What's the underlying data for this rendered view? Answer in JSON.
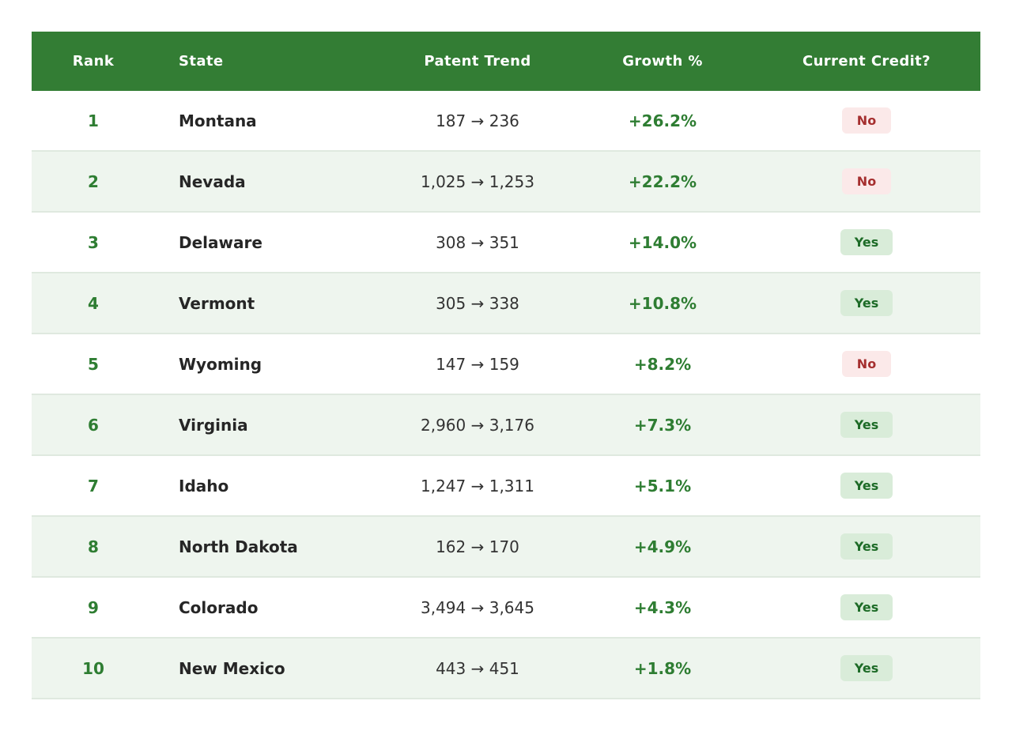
{
  "colors": {
    "header_bg": "#337d34",
    "header_text": "#ffffff",
    "accent_green": "#2e7d32",
    "row_bg": "#ffffff",
    "row_alt_bg": "#eef5ee",
    "row_divider": "#dfe9df",
    "badge_yes_bg": "#d9ecd9",
    "badge_yes_text": "#1d6b27",
    "badge_no_bg": "#fbe9e9",
    "badge_no_text": "#a52f2f",
    "state_text": "#262626",
    "trend_text": "#333333"
  },
  "table": {
    "columns": [
      {
        "key": "rank",
        "label": "Rank"
      },
      {
        "key": "state",
        "label": "State"
      },
      {
        "key": "trend",
        "label": "Patent Trend"
      },
      {
        "key": "growth",
        "label": "Growth %"
      },
      {
        "key": "credit",
        "label": "Current Credit?"
      }
    ],
    "rows": [
      {
        "rank": "1",
        "state": "Montana",
        "trend": "187 → 236",
        "growth": "+26.2%",
        "credit": "No"
      },
      {
        "rank": "2",
        "state": "Nevada",
        "trend": "1,025 → 1,253",
        "growth": "+22.2%",
        "credit": "No"
      },
      {
        "rank": "3",
        "state": "Delaware",
        "trend": "308 → 351",
        "growth": "+14.0%",
        "credit": "Yes"
      },
      {
        "rank": "4",
        "state": "Vermont",
        "trend": "305 → 338",
        "growth": "+10.8%",
        "credit": "Yes"
      },
      {
        "rank": "5",
        "state": "Wyoming",
        "trend": "147 → 159",
        "growth": "+8.2%",
        "credit": "No"
      },
      {
        "rank": "6",
        "state": "Virginia",
        "trend": "2,960 → 3,176",
        "growth": "+7.3%",
        "credit": "Yes"
      },
      {
        "rank": "7",
        "state": "Idaho",
        "trend": "1,247 → 1,311",
        "growth": "+5.1%",
        "credit": "Yes"
      },
      {
        "rank": "8",
        "state": "North Dakota",
        "trend": "162 → 170",
        "growth": "+4.9%",
        "credit": "Yes"
      },
      {
        "rank": "9",
        "state": "Colorado",
        "trend": "3,494 → 3,645",
        "growth": "+4.3%",
        "credit": "Yes"
      },
      {
        "rank": "10",
        "state": "New Mexico",
        "trend": "443 → 451",
        "growth": "+1.8%",
        "credit": "Yes"
      }
    ]
  },
  "chart_data": {
    "type": "table",
    "title": "",
    "columns": [
      "Rank",
      "State",
      "Patent Trend",
      "Growth %",
      "Current Credit?"
    ],
    "rows": [
      [
        1,
        "Montana",
        "187 → 236",
        "+26.2%",
        "No"
      ],
      [
        2,
        "Nevada",
        "1,025 → 1,253",
        "+22.2%",
        "No"
      ],
      [
        3,
        "Delaware",
        "308 → 351",
        "+14.0%",
        "Yes"
      ],
      [
        4,
        "Vermont",
        "305 → 338",
        "+10.8%",
        "Yes"
      ],
      [
        5,
        "Wyoming",
        "147 → 159",
        "+8.2%",
        "No"
      ],
      [
        6,
        "Virginia",
        "2,960 → 3,176",
        "+7.3%",
        "Yes"
      ],
      [
        7,
        "Idaho",
        "1,247 → 1,311",
        "+5.1%",
        "Yes"
      ],
      [
        8,
        "North Dakota",
        "162 → 170",
        "+4.9%",
        "Yes"
      ],
      [
        9,
        "Colorado",
        "3,494 → 3,645",
        "+4.3%",
        "Yes"
      ],
      [
        10,
        "New Mexico",
        "443 → 451",
        "+1.8%",
        "Yes"
      ]
    ],
    "patent_from": [
      187,
      1025,
      308,
      305,
      147,
      2960,
      1247,
      162,
      3494,
      443
    ],
    "patent_to": [
      236,
      1253,
      351,
      338,
      159,
      3176,
      1311,
      170,
      3645,
      451
    ],
    "growth_pct": [
      26.2,
      22.2,
      14.0,
      10.8,
      8.2,
      7.3,
      5.1,
      4.9,
      4.3,
      1.8
    ],
    "current_credit": [
      "No",
      "No",
      "Yes",
      "Yes",
      "No",
      "Yes",
      "Yes",
      "Yes",
      "Yes",
      "Yes"
    ]
  }
}
